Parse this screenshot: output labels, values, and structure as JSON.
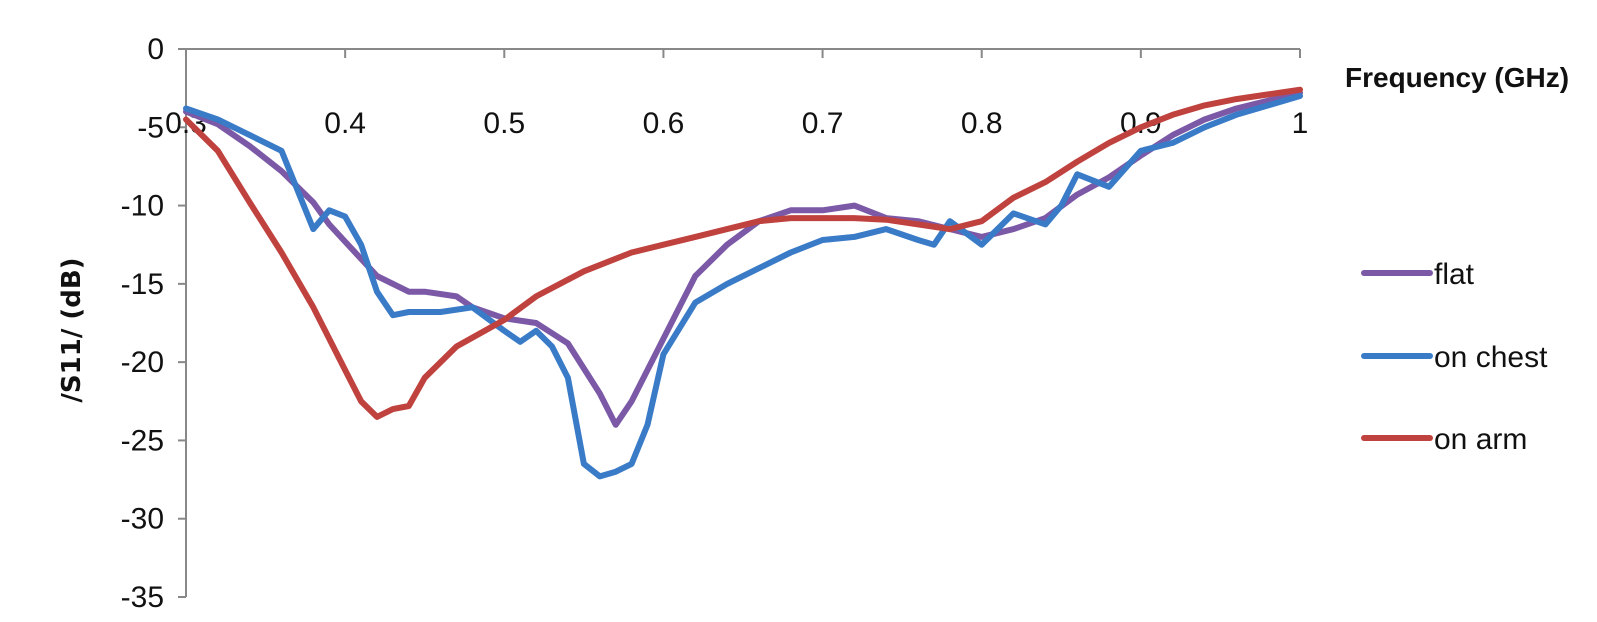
{
  "chart_data": {
    "type": "line",
    "xlabel": "Frequency (GHz)",
    "ylabel": "/S11/ (dB)",
    "xlim": [
      0.3,
      1
    ],
    "ylim": [
      -35,
      0
    ],
    "x_ticks": [
      "0.3",
      "0.4",
      "0.5",
      "0.6",
      "0.7",
      "0.8",
      "0.9",
      "1"
    ],
    "y_ticks": [
      "0",
      "-5",
      "-10",
      "-15",
      "-20",
      "-25",
      "-30",
      "-35"
    ],
    "x_axis_position": "top",
    "grid": false,
    "legend_position": "right",
    "series": [
      {
        "name": "flat",
        "color": "#7B59A6",
        "x": [
          0.3,
          0.32,
          0.34,
          0.36,
          0.38,
          0.39,
          0.4,
          0.42,
          0.44,
          0.45,
          0.47,
          0.48,
          0.5,
          0.52,
          0.54,
          0.56,
          0.57,
          0.58,
          0.6,
          0.62,
          0.64,
          0.66,
          0.68,
          0.7,
          0.72,
          0.74,
          0.76,
          0.78,
          0.8,
          0.82,
          0.84,
          0.86,
          0.88,
          0.9,
          0.92,
          0.94,
          0.96,
          0.98,
          1.0
        ],
        "y": [
          -4.0,
          -4.8,
          -6.2,
          -7.8,
          -9.8,
          -11.2,
          -12.3,
          -14.5,
          -15.5,
          -15.5,
          -15.8,
          -16.5,
          -17.2,
          -17.5,
          -18.8,
          -22.0,
          -24.0,
          -22.5,
          -18.5,
          -14.5,
          -12.5,
          -11.0,
          -10.3,
          -10.3,
          -10.0,
          -10.8,
          -11.0,
          -11.5,
          -12.0,
          -11.5,
          -10.8,
          -9.3,
          -8.2,
          -6.8,
          -5.5,
          -4.5,
          -3.8,
          -3.3,
          -2.8
        ]
      },
      {
        "name": "on chest",
        "color": "#3A7BC8",
        "x": [
          0.3,
          0.32,
          0.34,
          0.36,
          0.37,
          0.38,
          0.39,
          0.4,
          0.41,
          0.42,
          0.43,
          0.44,
          0.46,
          0.48,
          0.5,
          0.51,
          0.52,
          0.53,
          0.54,
          0.55,
          0.56,
          0.57,
          0.58,
          0.59,
          0.6,
          0.62,
          0.64,
          0.66,
          0.68,
          0.7,
          0.72,
          0.74,
          0.76,
          0.77,
          0.78,
          0.8,
          0.82,
          0.84,
          0.85,
          0.86,
          0.88,
          0.9,
          0.92,
          0.94,
          0.96,
          0.98,
          1.0
        ],
        "y": [
          -3.8,
          -4.5,
          -5.5,
          -6.5,
          -9.0,
          -11.5,
          -10.3,
          -10.7,
          -12.5,
          -15.5,
          -17.0,
          -16.8,
          -16.8,
          -16.5,
          -18.0,
          -18.7,
          -18.0,
          -19.0,
          -21.0,
          -26.5,
          -27.3,
          -27.0,
          -26.5,
          -24.0,
          -19.5,
          -16.2,
          -15.0,
          -14.0,
          -13.0,
          -12.2,
          -12.0,
          -11.5,
          -12.2,
          -12.5,
          -11.0,
          -12.5,
          -10.5,
          -11.2,
          -10.0,
          -8.0,
          -8.8,
          -6.5,
          -6.0,
          -5.0,
          -4.2,
          -3.6,
          -3.0
        ]
      },
      {
        "name": "on arm",
        "color": "#C0423E",
        "x": [
          0.3,
          0.32,
          0.34,
          0.36,
          0.38,
          0.4,
          0.41,
          0.42,
          0.43,
          0.44,
          0.45,
          0.47,
          0.5,
          0.52,
          0.55,
          0.58,
          0.6,
          0.62,
          0.64,
          0.66,
          0.68,
          0.7,
          0.72,
          0.74,
          0.76,
          0.78,
          0.8,
          0.82,
          0.84,
          0.86,
          0.88,
          0.9,
          0.92,
          0.94,
          0.96,
          0.98,
          1.0
        ],
        "y": [
          -4.5,
          -6.5,
          -9.8,
          -13.0,
          -16.5,
          -20.5,
          -22.5,
          -23.5,
          -23.0,
          -22.8,
          -21.0,
          -19.0,
          -17.3,
          -15.8,
          -14.2,
          -13.0,
          -12.5,
          -12.0,
          -11.5,
          -11.0,
          -10.8,
          -10.8,
          -10.8,
          -10.9,
          -11.2,
          -11.5,
          -11.0,
          -9.5,
          -8.5,
          -7.2,
          -6.0,
          -5.0,
          -4.2,
          -3.6,
          -3.2,
          -2.9,
          -2.6
        ]
      }
    ]
  }
}
